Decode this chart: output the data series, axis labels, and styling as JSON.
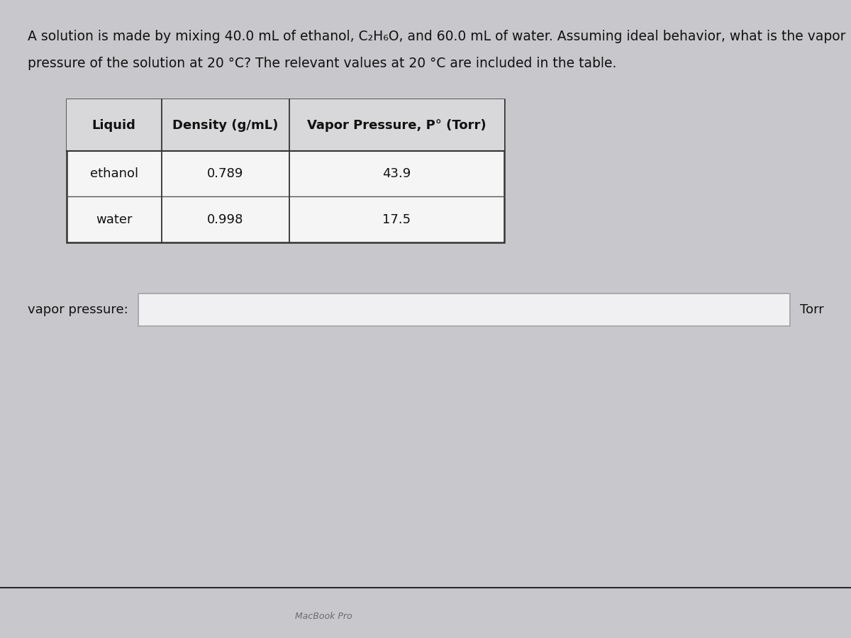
{
  "problem_text_line1": "A solution is made by mixing 40.0 mL of ethanol, C₂H₆O, and 60.0 mL of water. Assuming ideal behavior, what is the vapor",
  "problem_text_line2": "pressure of the solution at 20 °C? The relevant values at 20 °C are included in the table.",
  "table_headers": [
    "Liquid",
    "Density (g/mL)",
    "Vapor Pressure, P° (Torr)"
  ],
  "table_rows": [
    [
      "ethanol",
      "0.789",
      "43.9"
    ],
    [
      "water",
      "0.998",
      "17.5"
    ]
  ],
  "answer_label": "vapor pressure:",
  "answer_unit": "Torr",
  "screen_bg": "#c8c8cc",
  "panel_bg": "#e8e8ea",
  "panel_border": "#aaaaaa",
  "table_header_bg": "#d8d8da",
  "table_bg": "#f5f5f5",
  "input_box_bg": "#f0f0f2",
  "input_box_border": "#aaaaaa",
  "black_bar_color": "#111111",
  "macbook_text_color": "#444444",
  "macbook_text": "MacBook Pro",
  "text_color": "#111111",
  "font_size_problem": 13.5,
  "font_size_table_header": 13,
  "font_size_table_data": 13,
  "font_size_answer": 13,
  "font_size_unit": 13,
  "font_size_macbook": 9
}
